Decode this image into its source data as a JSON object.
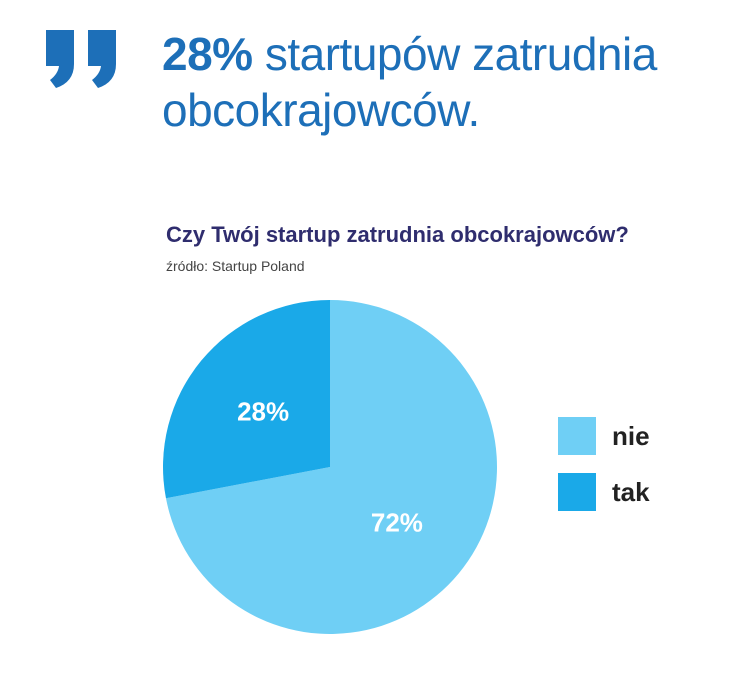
{
  "headline": {
    "highlight": "28%",
    "rest": " startupów zatrudnia obcokrajowców."
  },
  "colors": {
    "accent": "#1d6fb8",
    "title": "#2f2d6e",
    "nie": "#6fcff5",
    "tak": "#1aa9e8"
  },
  "chart_data": {
    "type": "pie",
    "title": "Czy Twój startup zatrudnia obcokrajowców?",
    "subtitle": "źródło: Startup Poland",
    "legend_position": "right",
    "slices": [
      {
        "label": "nie",
        "value": 72,
        "display": "72%",
        "color": "#6fcff5"
      },
      {
        "label": "tak",
        "value": 28,
        "display": "28%",
        "color": "#1aa9e8"
      }
    ]
  }
}
